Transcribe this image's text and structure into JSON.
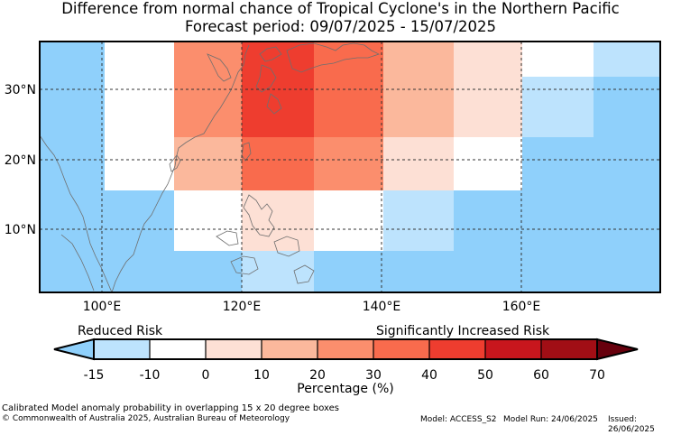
{
  "title_line1": "Difference from normal chance of Tropical Cyclone's in the Northern Pacific",
  "title_line2": "Forecast period: 09/07/2025 - 15/07/2025",
  "map": {
    "lon_ticks": [
      "100°E",
      "120°E",
      "140°E",
      "160°E"
    ],
    "lat_ticks": [
      "30°N",
      "20°N",
      "10°N"
    ],
    "colors": {
      "ocean_blue": "#8fd0fb",
      "light_blue": "#bde3fd",
      "white": "#ffffff",
      "c10_20": "#fde0d5",
      "c20_30": "#fbb89c",
      "c30_40": "#fb8e6d",
      "c40_50": "#f96b4d",
      "c50_60": "#ee3d2f"
    }
  },
  "chart_data": {
    "type": "heatmap",
    "title": "Difference from normal chance of Tropical Cyclone's in the Northern Pacific",
    "subtitle": "Forecast period: 09/07/2025 - 15/07/2025",
    "xlabel": "",
    "ylabel": "",
    "x_range_deg_E": [
      91,
      178
    ],
    "y_range_deg_N": [
      1,
      37
    ],
    "cells_percent_bins": [
      {
        "lon": [
          110,
          120
        ],
        "lat": [
          30,
          37
        ],
        "bin": "30 to 40"
      },
      {
        "lon": [
          120,
          130
        ],
        "lat": [
          30,
          37
        ],
        "bin": "50 to 60"
      },
      {
        "lon": [
          130,
          140
        ],
        "lat": [
          30,
          37
        ],
        "bin": "40 to 50"
      },
      {
        "lon": [
          140,
          150
        ],
        "lat": [
          30,
          37
        ],
        "bin": "20 to 30"
      },
      {
        "lon": [
          150,
          160
        ],
        "lat": [
          30,
          37
        ],
        "bin": "10 to 20"
      },
      {
        "lon": [
          110,
          120
        ],
        "lat": [
          22,
          30
        ],
        "bin": "30 to 40"
      },
      {
        "lon": [
          120,
          130
        ],
        "lat": [
          22,
          30
        ],
        "bin": "50 to 60"
      },
      {
        "lon": [
          130,
          140
        ],
        "lat": [
          22,
          30
        ],
        "bin": "40 to 50"
      },
      {
        "lon": [
          140,
          150
        ],
        "lat": [
          22,
          30
        ],
        "bin": "20 to 30"
      },
      {
        "lon": [
          150,
          160
        ],
        "lat": [
          22,
          30
        ],
        "bin": "10 to 20"
      },
      {
        "lon": [
          160,
          170
        ],
        "lat": [
          22,
          30
        ],
        "bin": "-10 to -15"
      },
      {
        "lon": [
          110,
          120
        ],
        "lat": [
          15,
          22
        ],
        "bin": "20 to 30"
      },
      {
        "lon": [
          120,
          130
        ],
        "lat": [
          15,
          22
        ],
        "bin": "40 to 50"
      },
      {
        "lon": [
          130,
          140
        ],
        "lat": [
          15,
          22
        ],
        "bin": "30 to 40"
      },
      {
        "lon": [
          140,
          150
        ],
        "lat": [
          15,
          22
        ],
        "bin": "10 to 20"
      },
      {
        "lon": [
          120,
          130
        ],
        "lat": [
          6,
          15
        ],
        "bin": "10 to 20"
      },
      {
        "lon": [
          140,
          150
        ],
        "lat": [
          6,
          15
        ],
        "bin": "-10 to -15"
      },
      {
        "lon": [
          120,
          130
        ],
        "lat": [
          1,
          6
        ],
        "bin": "-10 to -15"
      }
    ]
  },
  "colorbar": {
    "left_label": "Reduced Risk",
    "right_label": "Significantly Increased Risk",
    "ticks": [
      "-15",
      "-10",
      "0",
      "10",
      "20",
      "30",
      "40",
      "50",
      "60",
      "70"
    ],
    "colors": [
      "#bde3fd",
      "#ffffff",
      "#fde0d5",
      "#fbb89c",
      "#fb8e6d",
      "#f96b4d",
      "#ee3d2f",
      "#c8161d",
      "#a10e15"
    ],
    "low_extend_color": "#8fd0fb",
    "high_extend_color": "#67000d",
    "xlabel": "Percentage (%)"
  },
  "footer": {
    "line1": "Calibrated Model anomaly probability in overlapping 15 x 20 degree boxes",
    "line2": "© Commonwealth of Australia 2025, Australian Bureau of Meteorology",
    "model": "Model: ACCESS_S2",
    "model_run": "Model Run: 24/06/2025",
    "issued": "Issued: 26/06/2025"
  }
}
